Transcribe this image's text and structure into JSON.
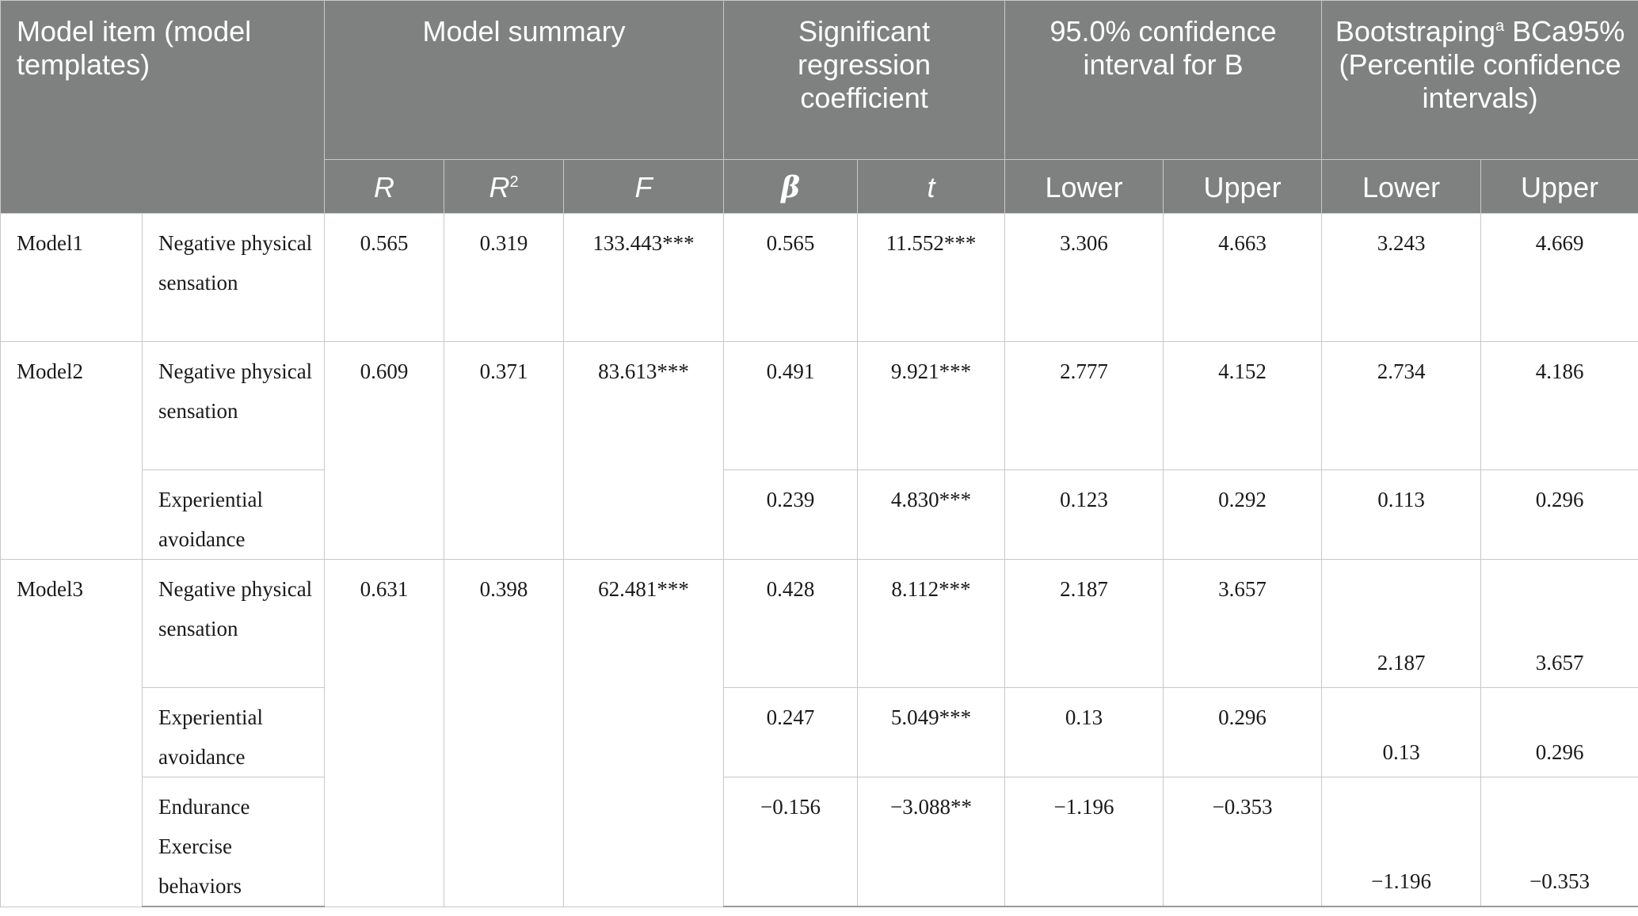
{
  "header": {
    "model_item": "Model item (model templates)",
    "model_summary": "Model summary",
    "significant": "Significant regression coefficient",
    "ci": "95.0% confidence interval for B",
    "bootstrap_main": "Bootstraping",
    "bootstrap_sup": "a",
    "bootstrap_rest": "BCa95% (Percentile confidence intervals)",
    "r": "R",
    "r2_base": "R",
    "r2_sup": "2",
    "f": "F",
    "beta": "β",
    "t": "t",
    "ci_lower": "Lower",
    "ci_upper": "Upper",
    "bs_lower": "Lower",
    "bs_upper": "Upper"
  },
  "rows": {
    "model1": {
      "name": "Model1",
      "r": "0.565",
      "r2": "0.319",
      "f": "133.443***",
      "items": [
        {
          "label": "Negative physical sensation",
          "beta": "0.565",
          "t": "11.552***",
          "ci_lower": "3.306",
          "ci_upper": "4.663",
          "bs_lower": "3.243",
          "bs_upper": "4.669"
        }
      ]
    },
    "model2": {
      "name": "Model2",
      "r": "0.609",
      "r2": "0.371",
      "f": "83.613***",
      "items": [
        {
          "label": "Negative physical sensation",
          "beta": "0.491",
          "t": "9.921***",
          "ci_lower": "2.777",
          "ci_upper": "4.152",
          "bs_lower": "2.734",
          "bs_upper": "4.186"
        },
        {
          "label": "Experiential avoidance",
          "beta": "0.239",
          "t": "4.830***",
          "ci_lower": "0.123",
          "ci_upper": "0.292",
          "bs_lower": "0.113",
          "bs_upper": "0.296"
        }
      ]
    },
    "model3": {
      "name": "Model3",
      "r": "0.631",
      "r2": "0.398",
      "f": "62.481***",
      "items": [
        {
          "label": "Negative physical sensation",
          "beta": "0.428",
          "t": "8.112***",
          "ci_lower": "2.187",
          "ci_upper": "3.657",
          "bs_lower": "2.187",
          "bs_upper": "3.657"
        },
        {
          "label": "Experiential avoidance",
          "beta": "0.247",
          "t": "5.049***",
          "ci_lower": "0.13",
          "ci_upper": "0.296",
          "bs_lower": "0.13",
          "bs_upper": "0.296"
        },
        {
          "label": "Endurance Exercise behaviors",
          "beta": "−0.156",
          "t": "−3.088**",
          "ci_lower": "−1.196",
          "ci_upper": "−0.353",
          "bs_lower": "−1.196",
          "bs_upper": "−0.353"
        }
      ]
    }
  }
}
